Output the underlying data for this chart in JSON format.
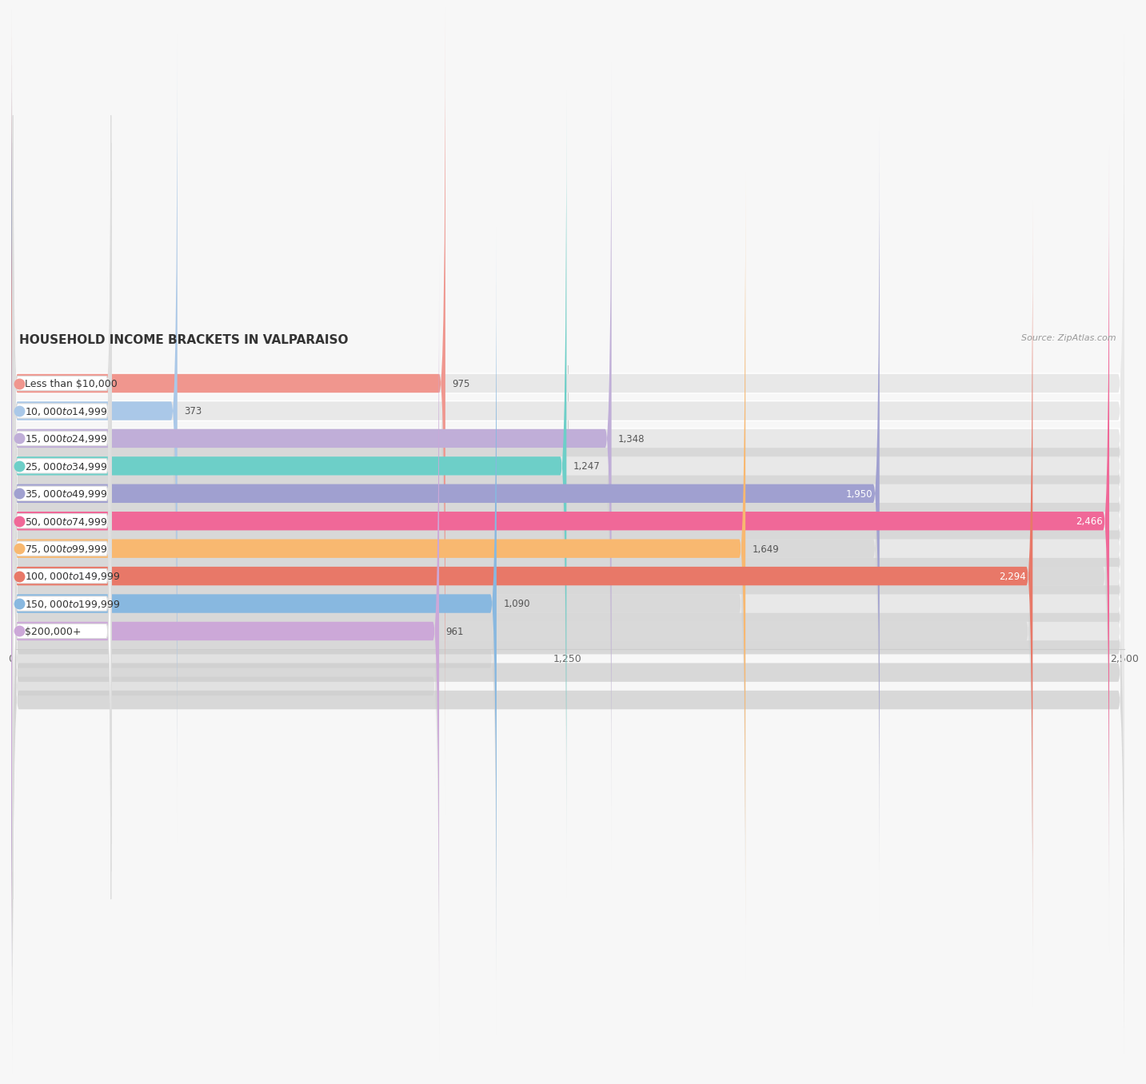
{
  "title": "HOUSEHOLD INCOME BRACKETS IN VALPARAISO",
  "source": "Source: ZipAtlas.com",
  "categories": [
    "Less than $10,000",
    "$10,000 to $14,999",
    "$15,000 to $24,999",
    "$25,000 to $34,999",
    "$35,000 to $49,999",
    "$50,000 to $74,999",
    "$75,000 to $99,999",
    "$100,000 to $149,999",
    "$150,000 to $199,999",
    "$200,000+"
  ],
  "values": [
    975,
    373,
    1348,
    1247,
    1950,
    2466,
    1649,
    2294,
    1090,
    961
  ],
  "bar_colors": [
    "#f0968e",
    "#aac8e8",
    "#c0aed8",
    "#6dcfc8",
    "#a0a0d0",
    "#f06898",
    "#f8b870",
    "#e87868",
    "#88b8e0",
    "#cca8d8"
  ],
  "label_pill_color": "#ffffff",
  "label_dot_colors": [
    "#f0968e",
    "#aac8e8",
    "#c0aed8",
    "#6dcfc8",
    "#a0a0d0",
    "#f06898",
    "#f8b870",
    "#e87868",
    "#88b8e0",
    "#cca8d8"
  ],
  "xlim": [
    0,
    2500
  ],
  "xticks": [
    0,
    1250,
    2500
  ],
  "background_color": "#f7f7f7",
  "bar_bg_color": "#e8e8e8",
  "row_bg_color": "#f0f0f0",
  "title_fontsize": 11,
  "label_fontsize": 9,
  "value_fontsize": 8.5,
  "value_inside_threshold": 1800
}
